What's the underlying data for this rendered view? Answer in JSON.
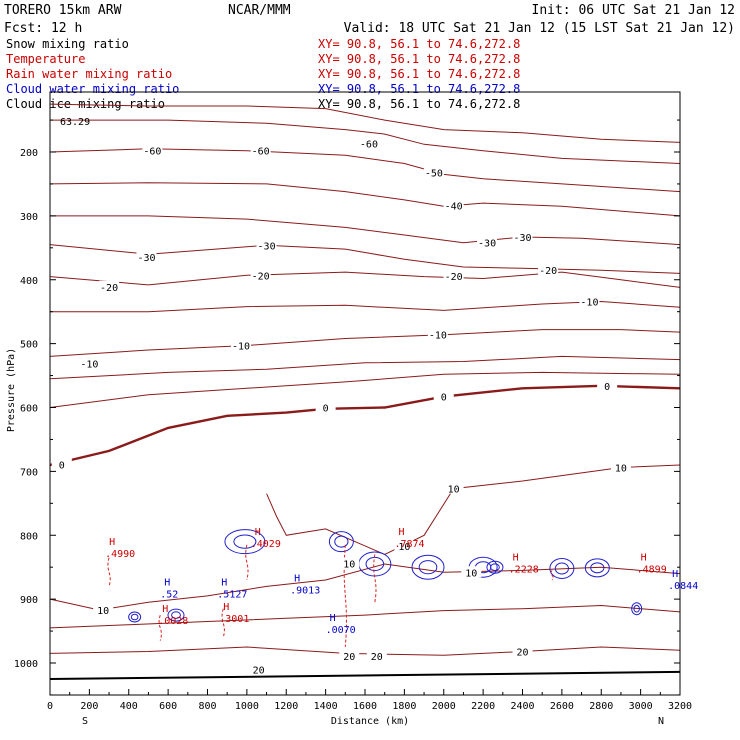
{
  "header": {
    "title": "TORERO  15km ARW",
    "center": "NCAR/MMM",
    "init": "Init: 06 UTC Sat 21 Jan 12",
    "fcst": "Fcst:   12 h",
    "valid": "Valid: 18 UTC Sat 21 Jan 12 (15 LST Sat 21 Jan 12)"
  },
  "fields": [
    {
      "name": "Snow mixing ratio",
      "color": "#000000",
      "xy": "XY=  90.8, 56.1 to  74.6,272.8",
      "xy_color": "#cc0000"
    },
    {
      "name": "Temperature",
      "color": "#cc0000",
      "xy": "XY=  90.8, 56.1 to  74.6,272.8",
      "xy_color": "#cc0000"
    },
    {
      "name": "Rain water mixing ratio",
      "color": "#cc0000",
      "xy": "XY=  90.8, 56.1 to  74.6,272.8",
      "xy_color": "#cc0000"
    },
    {
      "name": "Cloud water mixing ratio",
      "color": "#0000cc",
      "xy": "XY=  90.8, 56.1 to  74.6,272.8",
      "xy_color": "#0000cc"
    },
    {
      "name": "Cloud ice mixing ratio",
      "color": "#000000",
      "xy": "XY=  90.8, 56.1 to  74.6,272.8",
      "xy_color": "#000000"
    }
  ],
  "chart_data": {
    "type": "contour cross-section",
    "xlabel": "Distance (km)",
    "ylabel": "Pressure (hPa)",
    "xlim": [
      0,
      3200
    ],
    "ylim": [
      1050,
      100
    ],
    "xticks": [
      0,
      200,
      400,
      600,
      800,
      1000,
      1200,
      1400,
      1600,
      1800,
      2000,
      2200,
      2400,
      2600,
      2800,
      3000,
      3200
    ],
    "yticks": [
      200,
      300,
      400,
      500,
      600,
      700,
      800,
      900,
      1000
    ],
    "x_end_labels": {
      "left": "S",
      "right": "N"
    },
    "top_annotation": "63.29",
    "temperature_labels": [
      {
        "x": 520,
        "p": 198,
        "t": "-60"
      },
      {
        "x": 1070,
        "p": 198,
        "t": "-60"
      },
      {
        "x": 1620,
        "p": 187,
        "t": "-60"
      },
      {
        "x": 1950,
        "p": 232,
        "t": "-50"
      },
      {
        "x": 2050,
        "p": 284,
        "t": "-40"
      },
      {
        "x": 2220,
        "p": 342,
        "t": "-30"
      },
      {
        "x": 2400,
        "p": 333,
        "t": "-30"
      },
      {
        "x": 1100,
        "p": 346,
        "t": "-30"
      },
      {
        "x": 490,
        "p": 364,
        "t": "-30"
      },
      {
        "x": 300,
        "p": 411,
        "t": "-20"
      },
      {
        "x": 1070,
        "p": 393,
        "t": "-20"
      },
      {
        "x": 2050,
        "p": 394,
        "t": "-20"
      },
      {
        "x": 2530,
        "p": 385,
        "t": "-20"
      },
      {
        "x": 2740,
        "p": 434,
        "t": "-10"
      },
      {
        "x": 970,
        "p": 503,
        "t": "-10"
      },
      {
        "x": 1970,
        "p": 486,
        "t": "-10"
      },
      {
        "x": 200,
        "p": 531,
        "t": "-10"
      },
      {
        "x": 2830,
        "p": 566,
        "t": "0"
      },
      {
        "x": 2000,
        "p": 583,
        "t": "0"
      },
      {
        "x": 1400,
        "p": 600,
        "t": "0"
      },
      {
        "x": 60,
        "p": 689,
        "t": "0"
      },
      {
        "x": 2900,
        "p": 694,
        "t": "10"
      },
      {
        "x": 2050,
        "p": 727,
        "t": "10"
      },
      {
        "x": 1520,
        "p": 844,
        "t": "10"
      },
      {
        "x": 1800,
        "p": 817,
        "t": "10"
      },
      {
        "x": 2140,
        "p": 858,
        "t": "10"
      },
      {
        "x": 270,
        "p": 917,
        "t": "10"
      },
      {
        "x": 1520,
        "p": 989,
        "t": "20"
      },
      {
        "x": 1660,
        "p": 989,
        "t": "20"
      },
      {
        "x": 2400,
        "p": 982,
        "t": "20"
      },
      {
        "x": 1060,
        "p": 1010,
        "t": "20"
      }
    ],
    "h_labels": [
      {
        "x": 300,
        "p": 831,
        "v": ".4990",
        "c": "#cc0000"
      },
      {
        "x": 1040,
        "p": 815,
        "v": ".4029",
        "c": "#cc0000"
      },
      {
        "x": 1770,
        "p": 815,
        "v": ".7874",
        "c": "#cc0000"
      },
      {
        "x": 2350,
        "p": 855,
        "v": ".2228",
        "c": "#cc0000"
      },
      {
        "x": 3000,
        "p": 855,
        "v": ".4899",
        "c": "#cc0000"
      },
      {
        "x": 570,
        "p": 936,
        "v": ".0028",
        "c": "#cc0000"
      },
      {
        "x": 880,
        "p": 933,
        "v": ".3001",
        "c": "#cc0000"
      },
      {
        "x": 580,
        "p": 894,
        "v": ".52",
        "c": "#0000cc"
      },
      {
        "x": 870,
        "p": 894,
        "v": ".5127",
        "c": "#0000cc"
      },
      {
        "x": 1240,
        "p": 888,
        "v": ".9013",
        "c": "#0000cc"
      },
      {
        "x": 1420,
        "p": 950,
        "v": ".0070",
        "c": "#0000cc"
      },
      {
        "x": 3160,
        "p": 881,
        "v": ".0844",
        "c": "#0000cc"
      }
    ]
  }
}
